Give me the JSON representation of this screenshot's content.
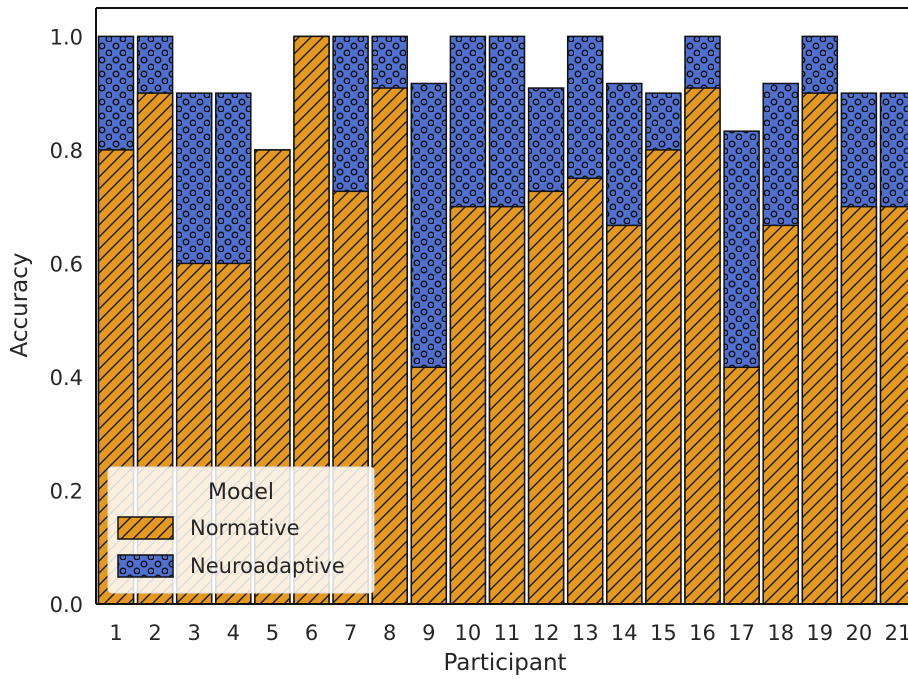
{
  "chart_data": {
    "type": "bar",
    "xlabel": "Participant",
    "ylabel": "Accuracy",
    "ylim": [
      0,
      1.05
    ],
    "yticks": [
      "0.0",
      "0.2",
      "0.4",
      "0.6",
      "0.8",
      "1.0"
    ],
    "categories": [
      "1",
      "2",
      "3",
      "4",
      "5",
      "6",
      "7",
      "8",
      "9",
      "10",
      "11",
      "12",
      "13",
      "14",
      "15",
      "16",
      "17",
      "18",
      "19",
      "20",
      "21"
    ],
    "series": [
      {
        "name": "Neuroadaptive",
        "color": "#5070d0",
        "pattern": "circles",
        "values": [
          1.0,
          1.0,
          0.9,
          0.9,
          0.8,
          1.0,
          1.0,
          1.0,
          0.917,
          1.0,
          1.0,
          0.909,
          1.0,
          0.917,
          0.9,
          1.0,
          0.833,
          0.917,
          1.0,
          0.9,
          0.9
        ]
      },
      {
        "name": "Normative",
        "color": "#e59a1d",
        "pattern": "diagonal-hatch",
        "values": [
          0.8,
          0.9,
          0.6,
          0.6,
          0.8,
          1.0,
          0.727,
          0.909,
          0.417,
          0.7,
          0.7,
          0.727,
          0.75,
          0.667,
          0.8,
          0.909,
          0.417,
          0.667,
          0.9,
          0.7,
          0.7
        ]
      }
    ],
    "legend": {
      "title": "Model",
      "placement": "lower-left",
      "entries": [
        "Normative",
        "Neuroadaptive"
      ]
    },
    "grid": false
  }
}
